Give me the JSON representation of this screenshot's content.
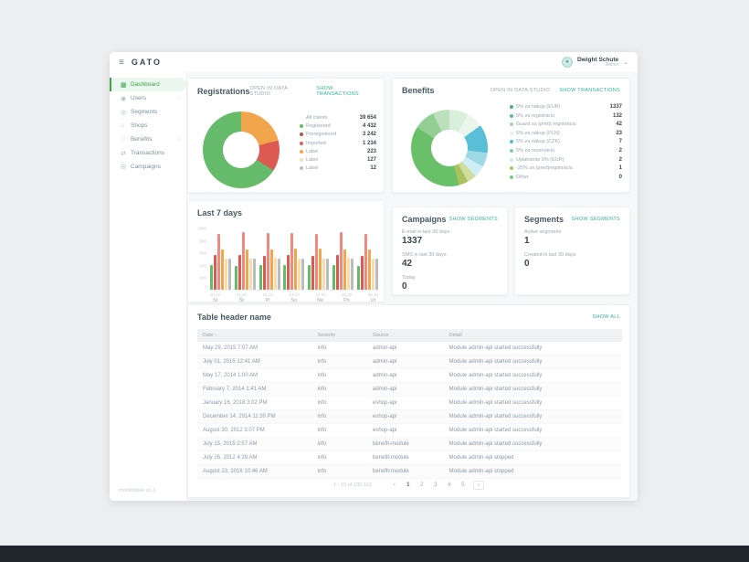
{
  "window": {
    "logo": "GATO",
    "user": {
      "name": "Dwight Schute",
      "role": "Admin"
    }
  },
  "sidebar": {
    "items": [
      {
        "label": "Dashboard",
        "icon": "dashboard-icon",
        "glyph": "▦",
        "active": true,
        "chevron": false
      },
      {
        "label": "Users",
        "icon": "users-icon",
        "glyph": "◉",
        "active": false,
        "chevron": true
      },
      {
        "label": "Segments",
        "icon": "segments-icon",
        "glyph": "◎",
        "active": false,
        "chevron": false
      },
      {
        "label": "Shops",
        "icon": "shops-icon",
        "glyph": "⌂",
        "active": false,
        "chevron": false
      },
      {
        "label": "Benefits",
        "icon": "benefits-icon",
        "glyph": "♡",
        "active": false,
        "chevron": true
      },
      {
        "label": "Transactions",
        "icon": "transactions-icon",
        "glyph": "⇄",
        "active": false,
        "chevron": false
      },
      {
        "label": "Campaigns",
        "icon": "campaigns-icon",
        "glyph": "✉",
        "active": false,
        "chevron": false
      }
    ],
    "footer": "monitobase v1.1"
  },
  "registrations": {
    "title": "Registrations",
    "link_studio": "OPEN IN DATA STUDIO",
    "link_transactions": "SHOW TRANSACTIONS",
    "legend": [
      {
        "label": "All clients",
        "value": "39 654",
        "color": null
      },
      {
        "label": "Registered",
        "value": "4 432",
        "color": "#66bb6a"
      },
      {
        "label": "Preregistered",
        "value": "3 242",
        "color": "#b5544c"
      },
      {
        "label": "Imported",
        "value": "1 234",
        "color": "#e0635b"
      },
      {
        "label": "Label",
        "value": "223",
        "color": "#f2a64b"
      },
      {
        "label": "Label",
        "value": "127",
        "color": "#f8dcb0"
      },
      {
        "label": "Label",
        "value": "12",
        "color": "#b9bdbe"
      }
    ],
    "donut_segments": [
      {
        "name": "orange",
        "color": "#f2a64b",
        "pct": 21
      },
      {
        "name": "red",
        "color": "#dd5a52",
        "pct": 13
      },
      {
        "name": "green",
        "color": "#66bb6a",
        "pct": 66
      }
    ]
  },
  "benefits": {
    "title": "Benefits",
    "link_studio": "OPEN IN DATA STUDIO",
    "link_transactions": "SHOW TRANSACTIONS",
    "legend": [
      {
        "label": "5% za nákup (EUR)",
        "value": "1337",
        "color": "#4caf7d"
      },
      {
        "label": "5% za registráciu",
        "value": "132",
        "color": "#56b8ae"
      },
      {
        "label": "Guard za (pred) registráciu",
        "value": "42",
        "color": "#a5d6a7"
      },
      {
        "label": "5% za nákup (PLN)",
        "value": "23",
        "color": "#e0f2ec"
      },
      {
        "label": "5% za nákup (CZK)",
        "value": "7",
        "color": "#54bcd2"
      },
      {
        "label": "5% za rezerváciu",
        "value": "2",
        "color": "#80cbc4"
      },
      {
        "label": "Uplatnenie 5% (EUR)",
        "value": "2",
        "color": "#c8ecf2"
      },
      {
        "label": "-25% za (pred)registráciu",
        "value": "1",
        "color": "#9ccc65"
      },
      {
        "label": "Other",
        "value": "0",
        "color": "#81c784"
      }
    ],
    "donut_segments": [
      {
        "name": "mint-light",
        "color": "#d9efdb",
        "pct": 8
      },
      {
        "name": "mint-pale",
        "color": "#eaf6ec",
        "pct": 7
      },
      {
        "name": "teal-blue",
        "color": "#59bfd6",
        "pct": 12
      },
      {
        "name": "blue-light",
        "color": "#9fd9e6",
        "pct": 6
      },
      {
        "name": "blue-pale",
        "color": "#cfeef4",
        "pct": 5
      },
      {
        "name": "olive-light",
        "color": "#cfdd9e",
        "pct": 4
      },
      {
        "name": "olive",
        "color": "#a9c25f",
        "pct": 4
      },
      {
        "name": "green",
        "color": "#6abf69",
        "pct": 38
      },
      {
        "name": "green-mid",
        "color": "#93cf92",
        "pct": 9
      },
      {
        "name": "green-light",
        "color": "#bce0bb",
        "pct": 7
      }
    ]
  },
  "last7days": {
    "title": "Last 7 days",
    "ymax": 1000,
    "yticks": [
      1000,
      800,
      600,
      400,
      200
    ],
    "bar_colors": [
      "#66bb6a",
      "#d95b53",
      "#ef8a80",
      "#f2a64b",
      "#f6dcae",
      "#b9bdbe"
    ],
    "days": [
      {
        "date": "10.10",
        "day": "St",
        "values": [
          400,
          555,
          900,
          650,
          505,
          500
        ]
      },
      {
        "date": "11.10",
        "day": "Št",
        "values": [
          385,
          560,
          930,
          645,
          500,
          505
        ]
      },
      {
        "date": "12.10",
        "day": "Pi",
        "values": [
          395,
          550,
          905,
          650,
          510,
          500
        ]
      },
      {
        "date": "13.10",
        "day": "So",
        "values": [
          400,
          560,
          915,
          655,
          505,
          505
        ]
      },
      {
        "date": "14.10",
        "day": "Ne",
        "values": [
          390,
          545,
          900,
          660,
          500,
          500
        ]
      },
      {
        "date": "15.10",
        "day": "Po",
        "values": [
          395,
          560,
          920,
          650,
          510,
          505
        ]
      },
      {
        "date": "16.10",
        "day": "Ut",
        "values": [
          385,
          550,
          895,
          645,
          505,
          500
        ]
      }
    ]
  },
  "campaigns": {
    "title": "Campaigns",
    "link": "SHOW SEGMENTS",
    "stats": [
      {
        "label": "E-mail in last 30 days",
        "value": "1337"
      },
      {
        "label": "SMS in last 30 days",
        "value": "42"
      },
      {
        "label": "Today",
        "value": "0"
      }
    ]
  },
  "segments": {
    "title": "Segments",
    "link": "SHOW SEGMENTS",
    "stats": [
      {
        "label": "Active segments",
        "value": "1"
      },
      {
        "label": "Created in last 30 days",
        "value": "0"
      }
    ]
  },
  "logtable": {
    "title": "Table header name",
    "link": "SHOW ALL",
    "columns": [
      "Date",
      "Severity",
      "Source",
      "Detail"
    ],
    "sort_arrow": "↑",
    "rows": [
      [
        "May 29, 2015 7:07 AM",
        "info",
        "admin-api",
        "Module admin-api started successfully"
      ],
      [
        "July 01, 2015 12:41 AM",
        "info",
        "admin-api",
        "Module admin-api started successfully"
      ],
      [
        "May 17, 2014 1:00 AM",
        "info",
        "admin-api",
        "Module admin-api started successfully"
      ],
      [
        "February 7, 2014 1:41 AM",
        "info",
        "admin-api",
        "Module admin-api started successfully"
      ],
      [
        "January 16, 2018 3:02 PM",
        "info",
        "eshop-api",
        "Module admin-api started successfully"
      ],
      [
        "December 14, 2014 11:30 PM",
        "info",
        "eshop-api",
        "Module admin-api started successfully"
      ],
      [
        "August 30, 2012 3:07 PM",
        "info",
        "eshop-api",
        "Module admin-api started successfully"
      ],
      [
        "July 15, 2015 2:57 AM",
        "info",
        "benefit-module",
        "Module admin-api started successfully"
      ],
      [
        "July 26, 2012 4:39 AM",
        "info",
        "benefit-module",
        "Module admin-api stopped"
      ],
      [
        "August 23, 2016 10:46 AM",
        "info",
        "benefit-module",
        "Module admin-api stopped"
      ]
    ],
    "pagination": {
      "range": "1 - 10 of 100 312",
      "prev": "‹",
      "pages": [
        "1",
        "2",
        "3",
        "4",
        "5"
      ],
      "next": "›",
      "current": "1"
    }
  },
  "colors": {
    "accent_teal": "#2eb398",
    "accent_green": "#43a047",
    "bottom_bar": "#20262b"
  }
}
